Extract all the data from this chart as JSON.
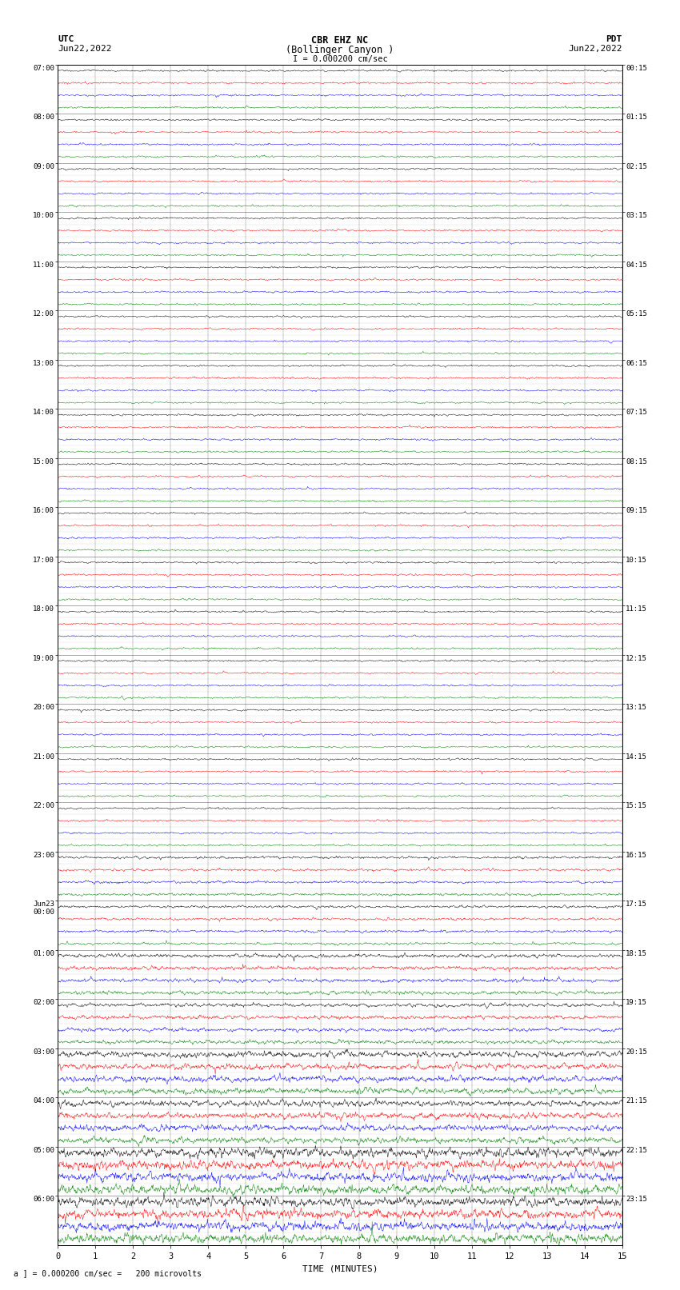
{
  "title_line1": "CBR EHZ NC",
  "title_line2": "(Bollinger Canyon )",
  "scale_label": "I = 0.000200 cm/sec",
  "left_header_line1": "UTC",
  "left_header_line2": "Jun22,2022",
  "right_header_line1": "PDT",
  "right_header_line2": "Jun22,2022",
  "bottom_label": "TIME (MINUTES)",
  "footer_label": "a ] = 0.000200 cm/sec =   200 microvolts",
  "utc_times": [
    "07:00",
    "08:00",
    "09:00",
    "10:00",
    "11:00",
    "12:00",
    "13:00",
    "14:00",
    "15:00",
    "16:00",
    "17:00",
    "18:00",
    "19:00",
    "20:00",
    "21:00",
    "22:00",
    "23:00",
    "Jun23\n00:00",
    "01:00",
    "02:00",
    "03:00",
    "04:00",
    "05:00",
    "06:00"
  ],
  "pdt_times": [
    "00:15",
    "01:15",
    "02:15",
    "03:15",
    "04:15",
    "05:15",
    "06:15",
    "07:15",
    "08:15",
    "09:15",
    "10:15",
    "11:15",
    "12:15",
    "13:15",
    "14:15",
    "15:15",
    "16:15",
    "17:15",
    "18:15",
    "19:15",
    "20:15",
    "21:15",
    "22:15",
    "23:15"
  ],
  "n_hour_blocks": 24,
  "colors": [
    "black",
    "red",
    "blue",
    "green"
  ],
  "background_color": "white",
  "figsize": [
    8.5,
    16.13
  ],
  "dpi": 100,
  "x_ticks": [
    0,
    1,
    2,
    3,
    4,
    5,
    6,
    7,
    8,
    9,
    10,
    11,
    12,
    13,
    14,
    15
  ],
  "x_min": 0,
  "x_max": 15
}
